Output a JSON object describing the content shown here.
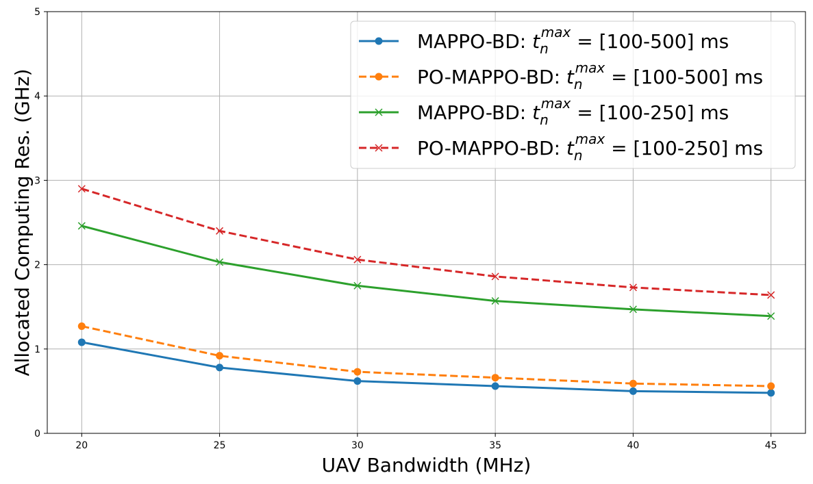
{
  "chart_data": {
    "type": "line",
    "xlabel": "UAV Bandwidth (MHz)",
    "ylabel": "Allocated Computing Res. (GHz)",
    "x": [
      20,
      25,
      30,
      35,
      40,
      45
    ],
    "xlim": [
      18.75,
      46.25
    ],
    "ylim": [
      0,
      5
    ],
    "xticks": [
      "20",
      "25",
      "30",
      "35",
      "40",
      "45"
    ],
    "yticks": [
      "0",
      "1",
      "2",
      "3",
      "4",
      "5"
    ],
    "grid": true,
    "legend_position": "top-right",
    "series": [
      {
        "name": "MAPPO-BD: t_n^max = [100-500] ms",
        "legend": {
          "prefix": "MAPPO-BD: ",
          "var": "t",
          "sub": "n",
          "sup": "max",
          "suffix": " = [100-500] ms"
        },
        "values": [
          1.08,
          0.78,
          0.62,
          0.56,
          0.5,
          0.48
        ],
        "color": "#1f77b4",
        "linestyle": "solid",
        "marker": "circle"
      },
      {
        "name": "PO-MAPPO-BD: t_n^max = [100-500] ms",
        "legend": {
          "prefix": "PO-MAPPO-BD: ",
          "var": "t",
          "sub": "n",
          "sup": "max",
          "suffix": " = [100-500] ms"
        },
        "values": [
          1.27,
          0.92,
          0.73,
          0.66,
          0.59,
          0.56
        ],
        "color": "#ff7f0e",
        "linestyle": "dashed",
        "marker": "circle"
      },
      {
        "name": "MAPPO-BD: t_n^max = [100-250] ms",
        "legend": {
          "prefix": "MAPPO-BD: ",
          "var": "t",
          "sub": "n",
          "sup": "max",
          "suffix": " = [100-250] ms"
        },
        "values": [
          2.46,
          2.03,
          1.75,
          1.57,
          1.47,
          1.39
        ],
        "color": "#2ca02c",
        "linestyle": "solid",
        "marker": "x"
      },
      {
        "name": "PO-MAPPO-BD: t_n^max = [100-250] ms",
        "legend": {
          "prefix": "PO-MAPPO-BD: ",
          "var": "t",
          "sub": "n",
          "sup": "max",
          "suffix": " = [100-250] ms"
        },
        "values": [
          2.9,
          2.4,
          2.06,
          1.86,
          1.73,
          1.64
        ],
        "color": "#d62728",
        "linestyle": "dashed",
        "marker": "x"
      }
    ]
  }
}
